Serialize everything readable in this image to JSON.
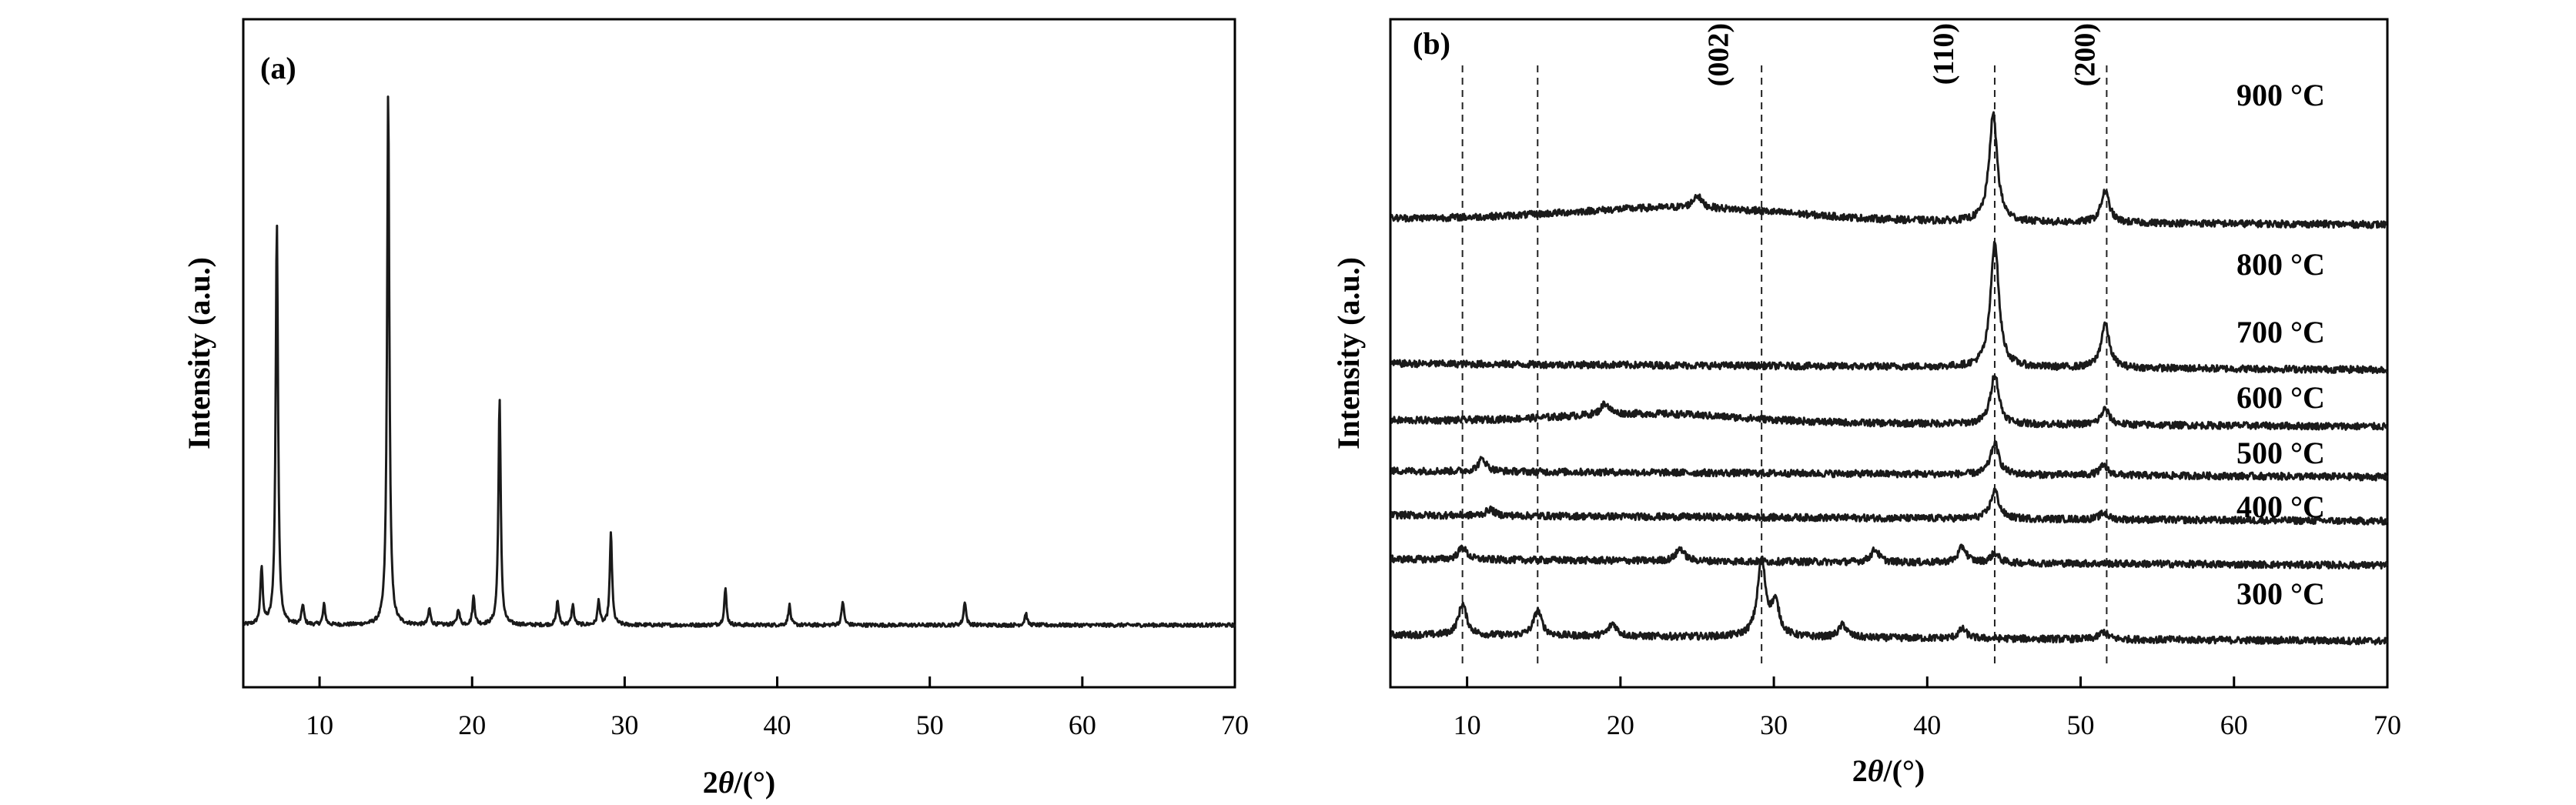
{
  "chart_data": [
    {
      "type": "line",
      "panel_label": "(a)",
      "xlabel": "2θ/(°)",
      "ylabel": "Intensity (a.u.)",
      "xlim": [
        5,
        70
      ],
      "x_ticks": [
        10,
        20,
        30,
        40,
        50,
        60,
        70
      ],
      "grid": false,
      "baseline": 3,
      "peaks": [
        {
          "x": 6.2,
          "y": 14
        },
        {
          "x": 7.2,
          "y": 100
        },
        {
          "x": 8.9,
          "y": 5
        },
        {
          "x": 10.3,
          "y": 5
        },
        {
          "x": 14.5,
          "y": 132
        },
        {
          "x": 17.2,
          "y": 4
        },
        {
          "x": 19.1,
          "y": 4
        },
        {
          "x": 20.1,
          "y": 7
        },
        {
          "x": 21.8,
          "y": 56
        },
        {
          "x": 25.6,
          "y": 6
        },
        {
          "x": 26.6,
          "y": 5
        },
        {
          "x": 28.3,
          "y": 6
        },
        {
          "x": 29.1,
          "y": 23
        },
        {
          "x": 36.6,
          "y": 9
        },
        {
          "x": 40.8,
          "y": 5
        },
        {
          "x": 44.3,
          "y": 6
        },
        {
          "x": 52.3,
          "y": 6
        },
        {
          "x": 56.3,
          "y": 3
        }
      ]
    },
    {
      "type": "line",
      "panel_label": "(b)",
      "xlabel": "2θ/(°)",
      "ylabel": "Intensity (a.u.)",
      "xlim": [
        5,
        70
      ],
      "x_ticks": [
        10,
        20,
        30,
        40,
        50,
        60,
        70
      ],
      "grid": false,
      "reference_lines_x": [
        9.7,
        14.6,
        29.2,
        44.4,
        51.7
      ],
      "peak_annotations": [
        {
          "label": "(002)",
          "x": 26.3
        },
        {
          "label": "(110)",
          "x": 41.0
        },
        {
          "label": "(200)",
          "x": 50.2
        }
      ],
      "series": [
        {
          "name": "300 °C",
          "offset": 0,
          "peaks": [
            {
              "x": 9.7,
              "y": 5
            },
            {
              "x": 14.6,
              "y": 4
            },
            {
              "x": 19.5,
              "y": 2
            },
            {
              "x": 29.2,
              "y": 12
            },
            {
              "x": 30.1,
              "y": 5
            },
            {
              "x": 34.5,
              "y": 2
            },
            {
              "x": 42.3,
              "y": 1.5
            },
            {
              "x": 51.5,
              "y": 1.2
            }
          ]
        },
        {
          "name": "400 °C",
          "offset": 12,
          "peaks": [
            {
              "x": 9.7,
              "y": 2
            },
            {
              "x": 23.9,
              "y": 2
            },
            {
              "x": 36.6,
              "y": 2
            },
            {
              "x": 42.3,
              "y": 2.5
            },
            {
              "x": 44.4,
              "y": 1.5
            }
          ]
        },
        {
          "name": "500 °C",
          "offset": 19,
          "peaks": [
            {
              "x": 11.5,
              "y": 1
            },
            {
              "x": 44.4,
              "y": 4.5
            },
            {
              "x": 51.5,
              "y": 1
            }
          ]
        },
        {
          "name": "600 °C",
          "offset": 26,
          "peaks": [
            {
              "x": 11.0,
              "y": 2
            },
            {
              "x": 44.4,
              "y": 5
            },
            {
              "x": 51.5,
              "y": 1.5
            }
          ]
        },
        {
          "name": "700 °C",
          "offset": 34,
          "peaks": [
            {
              "x": 19.0,
              "y": 1.8
            },
            {
              "x": 44.4,
              "y": 8
            },
            {
              "x": 51.6,
              "y": 2.5
            }
          ]
        },
        {
          "name": "800 °C",
          "offset": 43,
          "peaks": [
            {
              "x": 44.4,
              "y": 20
            },
            {
              "x": 51.6,
              "y": 7
            }
          ]
        },
        {
          "name": "900 °C",
          "offset": 66,
          "peaks": [
            {
              "x": 25.0,
              "y": 2
            },
            {
              "x": 44.3,
              "y": 17
            },
            {
              "x": 51.6,
              "y": 5
            }
          ]
        }
      ]
    }
  ]
}
